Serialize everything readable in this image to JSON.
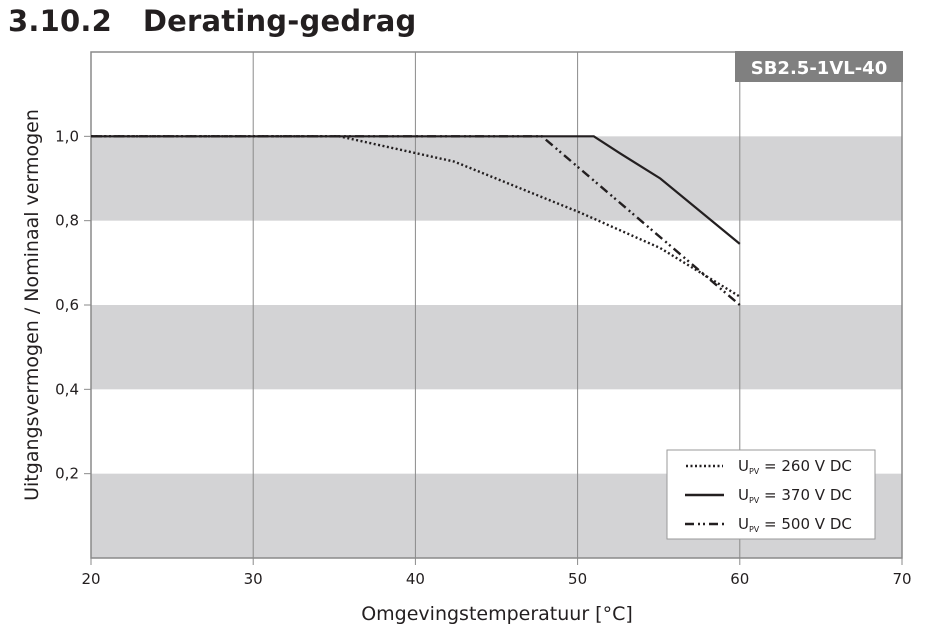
{
  "header": {
    "section_number": "3.10.2",
    "title": "Derating-gedrag"
  },
  "badge": {
    "label": "SB2.5-1VL-40",
    "color": "#808080"
  },
  "chart_data": {
    "type": "line",
    "title": "Derating-gedrag",
    "model": "SB2.5-1VL-40",
    "xlabel": "Omgevingstemperatuur [°C]",
    "ylabel": "Uitgangsvermogen / Nominaal vermogen",
    "xlim": [
      20,
      70
    ],
    "ylim": [
      0,
      1.2
    ],
    "xticks": [
      20,
      30,
      40,
      50,
      60,
      70
    ],
    "xtick_labels": [
      "20",
      "30",
      "40",
      "50",
      "60",
      "70"
    ],
    "yticks": [
      0.2,
      0.4,
      0.6,
      0.8,
      1.0
    ],
    "ytick_labels": [
      "0,2",
      "0,4",
      "0,6",
      "0,8",
      "1,0"
    ],
    "grid": {
      "vertical": true,
      "horizontal_bands": [
        [
          0,
          0.2
        ],
        [
          0.4,
          0.6
        ],
        [
          0.8,
          1.0
        ]
      ],
      "band_color": "#d3d3d5"
    },
    "legend_position": "lower right",
    "series": [
      {
        "name": "U_PV = 260 V DC",
        "style": "dotted",
        "x": [
          20,
          35.3,
          42.4,
          50.1,
          55.1,
          60
        ],
        "y": [
          1.0,
          1.0,
          0.94,
          0.82,
          0.735,
          0.62
        ]
      },
      {
        "name": "U_PV = 370 V DC",
        "style": "solid",
        "x": [
          20,
          51.0,
          52.6,
          55.1,
          60
        ],
        "y": [
          1.0,
          1.0,
          0.96,
          0.9,
          0.745
        ]
      },
      {
        "name": "U_PV = 500 V DC",
        "style": "dash-dot-dot",
        "x": [
          20,
          47.8,
          60
        ],
        "y": [
          1.0,
          1.0,
          0.6
        ]
      }
    ]
  },
  "legend": {
    "items": [
      {
        "prefix": "U",
        "sub": "PV",
        "suffix": " = 260 V DC"
      },
      {
        "prefix": "U",
        "sub": "PV",
        "suffix": " = 370 V DC"
      },
      {
        "prefix": "U",
        "sub": "PV",
        "suffix": " = 500 V DC"
      }
    ]
  }
}
